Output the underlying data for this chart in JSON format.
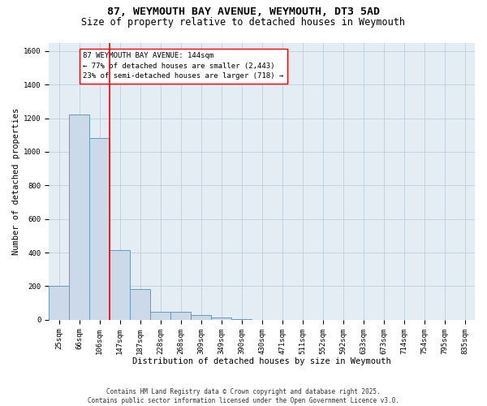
{
  "title_line1": "87, WEYMOUTH BAY AVENUE, WEYMOUTH, DT3 5AD",
  "title_line2": "Size of property relative to detached houses in Weymouth",
  "xlabel": "Distribution of detached houses by size in Weymouth",
  "ylabel": "Number of detached properties",
  "categories": [
    "25sqm",
    "66sqm",
    "106sqm",
    "147sqm",
    "187sqm",
    "228sqm",
    "268sqm",
    "309sqm",
    "349sqm",
    "390sqm",
    "430sqm",
    "471sqm",
    "511sqm",
    "552sqm",
    "592sqm",
    "633sqm",
    "673sqm",
    "714sqm",
    "754sqm",
    "795sqm",
    "835sqm"
  ],
  "values": [
    200,
    1220,
    1080,
    415,
    183,
    50,
    50,
    28,
    12,
    5,
    0,
    0,
    0,
    0,
    0,
    0,
    0,
    0,
    0,
    0,
    0
  ],
  "bar_color": "#ccd9e8",
  "bar_edge_color": "#6699bb",
  "grid_color": "#b8c8d8",
  "bg_color": "#e4ecf4",
  "annotation_text": "87 WEYMOUTH BAY AVENUE: 144sqm\n← 77% of detached houses are smaller (2,443)\n23% of semi-detached houses are larger (718) →",
  "vline_index": 2.5,
  "ylim": [
    0,
    1650
  ],
  "yticks": [
    0,
    200,
    400,
    600,
    800,
    1000,
    1200,
    1400,
    1600
  ],
  "footer": "Contains HM Land Registry data © Crown copyright and database right 2025.\nContains public sector information licensed under the Open Government Licence v3.0.",
  "title_fontsize": 9.5,
  "subtitle_fontsize": 8.5,
  "annotation_fontsize": 6.5,
  "axis_label_fontsize": 7.5,
  "tick_fontsize": 6.5,
  "footer_fontsize": 5.5
}
